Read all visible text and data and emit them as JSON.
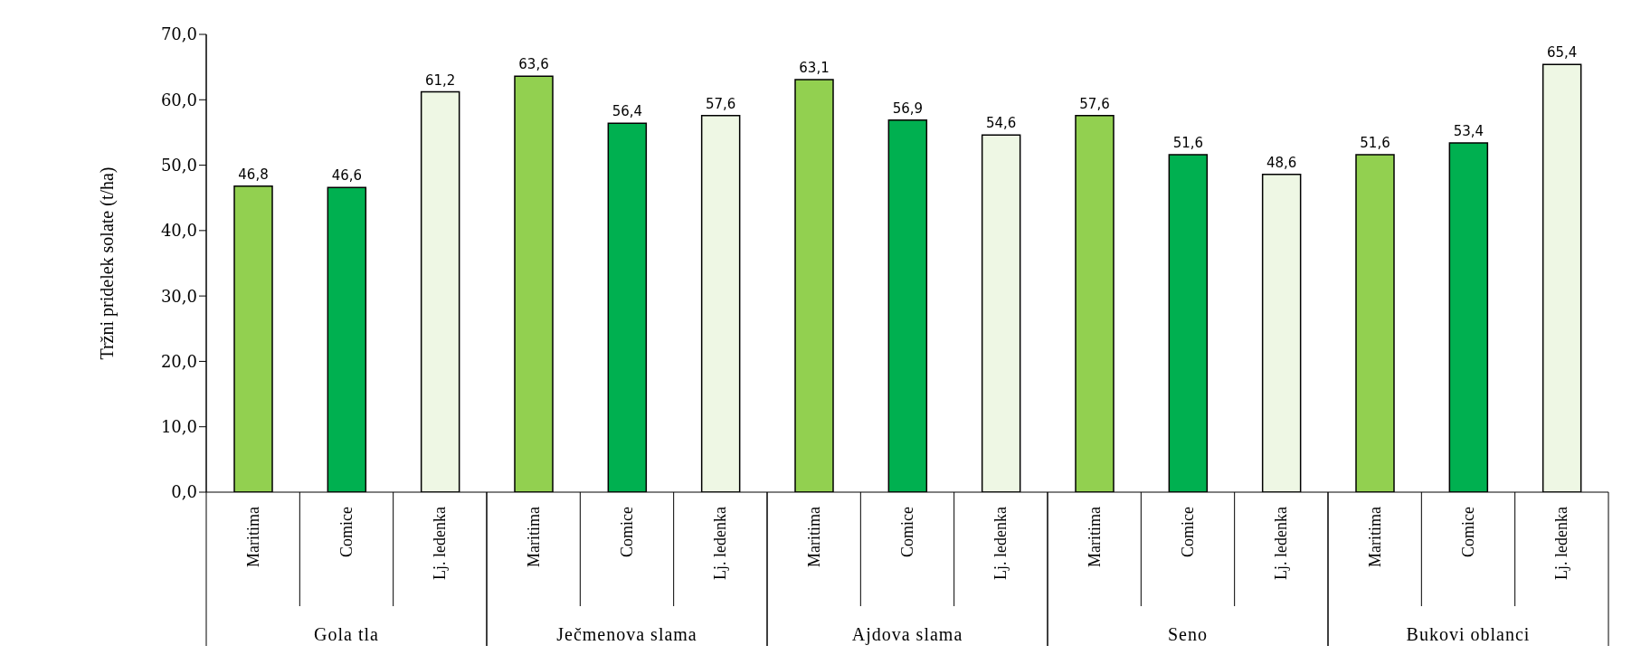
{
  "chart_data": {
    "type": "bar",
    "ylabel": "Tržni pridelek solate (t/ha)",
    "categories": [
      "Gola tla",
      "Ječmenova slama",
      "Ajdova slama",
      "Seno",
      "Bukovi oblanci"
    ],
    "series": [
      {
        "name": "Maritima",
        "color": "#92d050",
        "values": [
          46.8,
          63.6,
          63.1,
          57.6,
          51.6
        ],
        "value_labels": [
          "46,8",
          "63,6",
          "63,1",
          "57,6",
          "51,6"
        ]
      },
      {
        "name": "Comice",
        "color": "#00b050",
        "values": [
          46.6,
          56.4,
          56.9,
          51.6,
          53.4
        ],
        "value_labels": [
          "46,6",
          "56,4",
          "56,9",
          "51,6",
          "53,4"
        ]
      },
      {
        "name": "Lj. ledenka",
        "color": "#eef7e4",
        "values": [
          61.2,
          57.6,
          54.6,
          48.6,
          65.4
        ],
        "value_labels": [
          "61,2",
          "57,6",
          "54,6",
          "48,6",
          "65,4"
        ]
      }
    ],
    "ylim": [
      0,
      70
    ],
    "yticks": [
      {
        "value": 0,
        "label": "0,0"
      },
      {
        "value": 10,
        "label": "10,0"
      },
      {
        "value": 20,
        "label": "20,0"
      },
      {
        "value": 30,
        "label": "30,0"
      },
      {
        "value": 40,
        "label": "40,0"
      },
      {
        "value": 50,
        "label": "50,0"
      },
      {
        "value": 60,
        "label": "60,0"
      },
      {
        "value": 70,
        "label": "70,0"
      }
    ],
    "grid": false,
    "legend": false
  }
}
